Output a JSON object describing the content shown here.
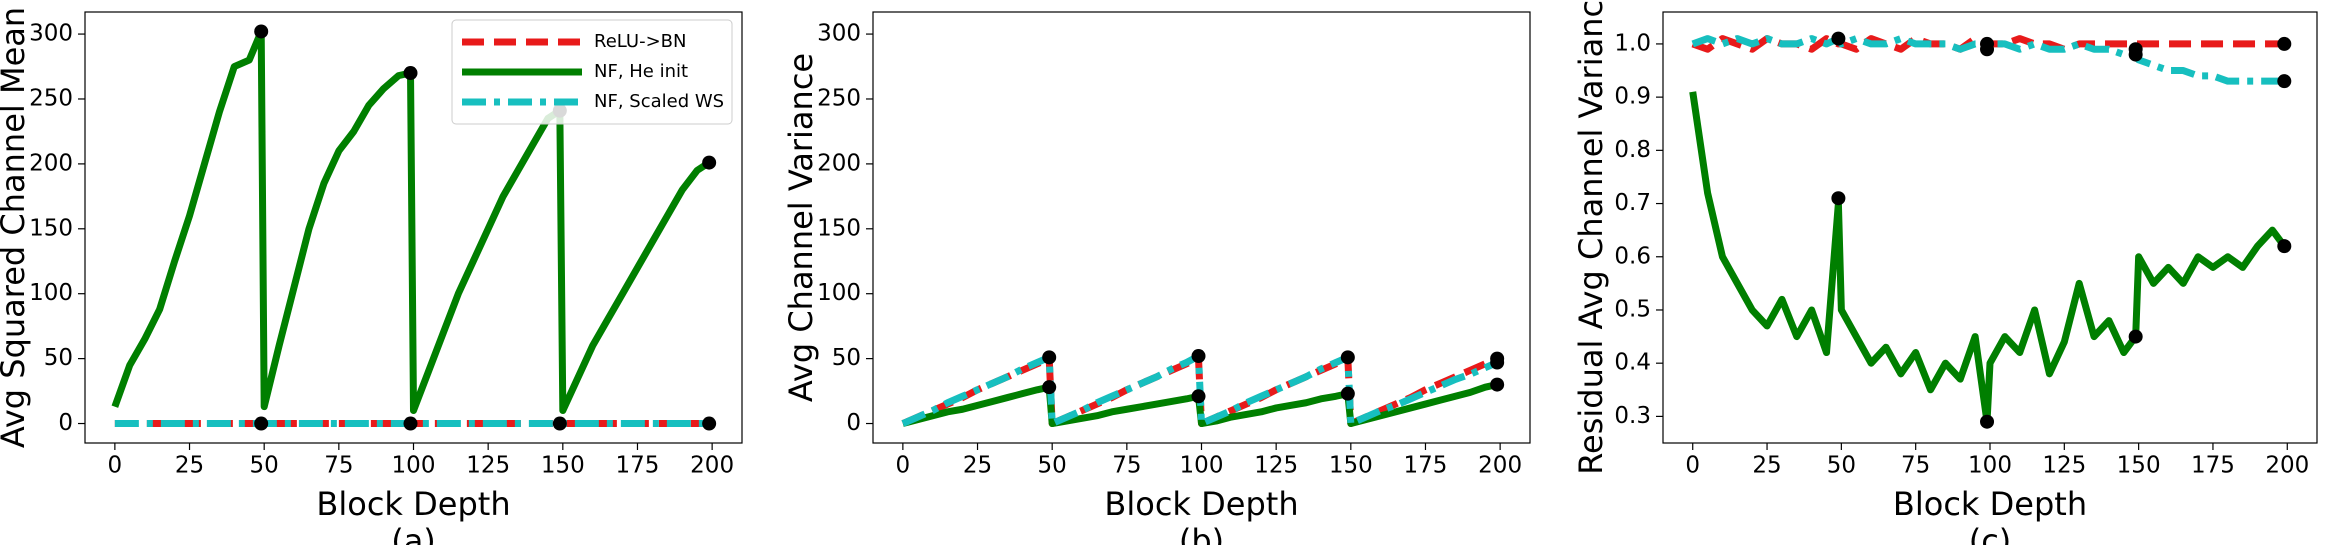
{
  "chart_data": [
    {
      "type": "line",
      "x_label": "Block Depth",
      "y_label": "Avg Squared Channel Mean",
      "caption": "(a)",
      "legend": "upper right",
      "x": [
        0,
        5,
        10,
        15,
        20,
        25,
        30,
        35,
        40,
        45,
        49,
        50,
        55,
        60,
        65,
        70,
        75,
        80,
        85,
        90,
        95,
        99,
        100,
        105,
        110,
        115,
        120,
        125,
        130,
        135,
        140,
        145,
        149,
        150,
        155,
        160,
        165,
        170,
        175,
        180,
        185,
        190,
        195,
        199
      ],
      "xlim": [
        -10,
        210
      ],
      "xticks": [
        0,
        25,
        50,
        75,
        100,
        125,
        150,
        175,
        200
      ],
      "ylim": [
        -15,
        317
      ],
      "yticks": [
        0,
        50,
        100,
        150,
        200,
        250,
        300
      ],
      "series": [
        {
          "name": "ReLU->BN",
          "color": "#e81a1a",
          "style": "dashed",
          "values": [
            0,
            0,
            0,
            0,
            0,
            0,
            0,
            0,
            0,
            0,
            0,
            0,
            0,
            0,
            0,
            0,
            0,
            0,
            0,
            0,
            0,
            0,
            0,
            0,
            0,
            0,
            0,
            0,
            0,
            0,
            0,
            0,
            0,
            0,
            0,
            0,
            0,
            0,
            0,
            0,
            0,
            0,
            0,
            0
          ]
        },
        {
          "name": "NF, He init",
          "color": "#007f00",
          "style": "solid",
          "values": [
            13,
            45,
            65,
            88,
            125,
            160,
            200,
            240,
            275,
            280,
            302,
            13,
            60,
            105,
            150,
            185,
            210,
            225,
            245,
            258,
            268,
            270,
            10,
            40,
            70,
            100,
            125,
            150,
            175,
            195,
            215,
            235,
            241,
            10,
            35,
            60,
            80,
            100,
            120,
            140,
            160,
            180,
            195,
            201
          ]
        },
        {
          "name": "NF, Scaled WS",
          "color": "#17bfbf",
          "style": "dashdot",
          "values": [
            0,
            0,
            0,
            0,
            0,
            0,
            0,
            0,
            0,
            0,
            0,
            0,
            0,
            0,
            0,
            0,
            0,
            0,
            0,
            0,
            0,
            0,
            0,
            0,
            0,
            0,
            0,
            0,
            0,
            0,
            0,
            0,
            0,
            0,
            0,
            0,
            0,
            0,
            0,
            0,
            0,
            0,
            0,
            0
          ]
        }
      ],
      "dots": {
        "x": [
          49,
          49,
          99,
          99,
          149,
          149,
          199,
          199
        ],
        "y": [
          302,
          0,
          270,
          0,
          241,
          0,
          201,
          0
        ]
      }
    },
    {
      "type": "line",
      "x_label": "Block Depth",
      "y_label": "Avg Channel Variance",
      "caption": "(b)",
      "x": [
        0,
        5,
        10,
        15,
        20,
        25,
        30,
        35,
        40,
        45,
        49,
        50,
        55,
        60,
        65,
        70,
        75,
        80,
        85,
        90,
        95,
        99,
        100,
        105,
        110,
        115,
        120,
        125,
        130,
        135,
        140,
        145,
        149,
        150,
        155,
        160,
        165,
        170,
        175,
        180,
        185,
        190,
        195,
        199
      ],
      "xlim": [
        -10,
        210
      ],
      "xticks": [
        0,
        25,
        50,
        75,
        100,
        125,
        150,
        175,
        200
      ],
      "ylim": [
        -15,
        317
      ],
      "yticks": [
        0,
        50,
        100,
        150,
        200,
        250,
        300
      ],
      "series": [
        {
          "color": "#e81a1a",
          "style": "dashed",
          "values": [
            0,
            5,
            10,
            15,
            20,
            26,
            31,
            36,
            41,
            46,
            50,
            0,
            5,
            10,
            15,
            20,
            26,
            31,
            36,
            41,
            46,
            50,
            0,
            5,
            10,
            15,
            20,
            26,
            31,
            36,
            41,
            46,
            50,
            0,
            5,
            10,
            15,
            20,
            26,
            31,
            36,
            41,
            46,
            50
          ]
        },
        {
          "color": "#007f00",
          "style": "solid",
          "values": [
            0,
            3,
            6,
            9,
            11,
            14,
            17,
            20,
            23,
            26,
            28,
            0,
            2,
            4,
            6,
            9,
            11,
            13,
            15,
            17,
            19,
            21,
            0,
            2,
            5,
            7,
            9,
            12,
            14,
            16,
            19,
            21,
            23,
            0,
            3,
            6,
            9,
            12,
            15,
            18,
            21,
            24,
            28,
            30
          ]
        },
        {
          "color": "#17bfbf",
          "style": "dashdot",
          "values": [
            0,
            5,
            10,
            16,
            21,
            26,
            31,
            36,
            42,
            47,
            51,
            0,
            5,
            10,
            16,
            21,
            26,
            31,
            36,
            42,
            47,
            52,
            0,
            5,
            10,
            16,
            21,
            26,
            31,
            36,
            42,
            47,
            51,
            0,
            5,
            10,
            14,
            19,
            24,
            29,
            34,
            38,
            43,
            47
          ]
        }
      ],
      "dots": {
        "x": [
          49,
          49,
          99,
          99,
          149,
          149,
          199,
          199,
          199
        ],
        "y": [
          51,
          28,
          52,
          21,
          51,
          23,
          50,
          47,
          30
        ]
      }
    },
    {
      "type": "line",
      "x_label": "Block Depth",
      "y_label": "Residual Avg Channel Variance",
      "caption": "(c)",
      "x": [
        0,
        5,
        10,
        15,
        20,
        25,
        30,
        35,
        40,
        45,
        49,
        50,
        55,
        60,
        65,
        70,
        75,
        80,
        85,
        90,
        95,
        99,
        100,
        105,
        110,
        115,
        120,
        125,
        130,
        135,
        140,
        145,
        149,
        150,
        155,
        160,
        165,
        170,
        175,
        180,
        185,
        190,
        195,
        199
      ],
      "xlim": [
        -10,
        210
      ],
      "xticks": [
        0,
        25,
        50,
        75,
        100,
        125,
        150,
        175,
        200
      ],
      "ylim": [
        0.25,
        1.06
      ],
      "yticks": [
        0.3,
        0.4,
        0.5,
        0.6,
        0.7,
        0.8,
        0.9,
        {
          "value": 1,
          "label": "1.0"
        }
      ],
      "series": [
        {
          "color": "#e81a1a",
          "style": "dashed",
          "values": [
            1.0,
            0.99,
            1.01,
            1.0,
            0.99,
            1.01,
            1.0,
            1.0,
            0.99,
            1.01,
            1.0,
            1.0,
            0.99,
            1.01,
            1.0,
            0.99,
            1.01,
            1.0,
            1.0,
            0.99,
            1.01,
            1.0,
            1.0,
            1.0,
            1.01,
            1.0,
            1.0,
            0.99,
            1.0,
            1.0,
            1.0,
            1.0,
            1.0,
            1.0,
            1.0,
            1.0,
            1.0,
            1.0,
            1.0,
            1.0,
            1.0,
            1.0,
            1.0,
            1.0
          ]
        },
        {
          "color": "#007f00",
          "style": "solid",
          "values": [
            0.91,
            0.72,
            0.6,
            0.55,
            0.5,
            0.47,
            0.52,
            0.45,
            0.5,
            0.42,
            0.7,
            0.5,
            0.45,
            0.4,
            0.43,
            0.38,
            0.42,
            0.35,
            0.4,
            0.37,
            0.45,
            0.29,
            0.4,
            0.45,
            0.42,
            0.5,
            0.38,
            0.44,
            0.55,
            0.45,
            0.48,
            0.42,
            0.45,
            0.6,
            0.55,
            0.58,
            0.55,
            0.6,
            0.58,
            0.6,
            0.58,
            0.62,
            0.65,
            0.62
          ]
        },
        {
          "color": "#17bfbf",
          "style": "dashdot",
          "values": [
            1.0,
            1.01,
            1.0,
            1.01,
            1.0,
            1.01,
            1.0,
            1.0,
            1.01,
            1.0,
            1.01,
            1.0,
            1.01,
            1.0,
            1.0,
            1.01,
            1.0,
            1.0,
            1.0,
            0.99,
            1.0,
            1.0,
            1.0,
            1.0,
            0.99,
            1.0,
            0.99,
            0.99,
            1.0,
            0.99,
            0.99,
            0.98,
            0.98,
            0.97,
            0.96,
            0.95,
            0.95,
            0.94,
            0.94,
            0.93,
            0.93,
            0.93,
            0.93,
            0.93
          ]
        }
      ],
      "dots": {
        "x": [
          49,
          49,
          99,
          99,
          99,
          149,
          149,
          149,
          199,
          199,
          199
        ],
        "y": [
          1.01,
          0.71,
          1.0,
          0.99,
          0.29,
          0.99,
          0.98,
          0.45,
          1.0,
          0.93,
          0.62
        ]
      }
    }
  ]
}
